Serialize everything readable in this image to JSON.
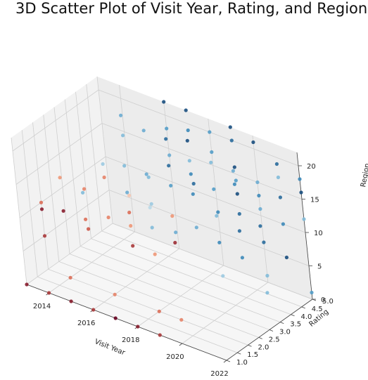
{
  "chart_data": {
    "type": "scatter",
    "title": "3D Scatter Plot of Visit Year, Rating, and Region",
    "xlabel": "Visit Year",
    "ylabel": "Rating",
    "zlabel": "Region",
    "xlim": [
      2013,
      2022
    ],
    "ylim": [
      1.0,
      5.0
    ],
    "zlim": [
      0,
      22
    ],
    "xticks": [
      "2014",
      "2016",
      "2018",
      "2020",
      "2022"
    ],
    "yticks": [
      "1.0",
      "1.5",
      "2.0",
      "2.5",
      "3.0",
      "3.5",
      "4.0",
      "4.5",
      "5.0"
    ],
    "zticks": [
      "0",
      "5",
      "10",
      "15",
      "20"
    ],
    "grid": true,
    "colormap": "RdBu",
    "colormap_stops": [
      "#67001f",
      "#d6604d",
      "#f4a582",
      "#f7f7f7",
      "#92c5de",
      "#4393c3",
      "#053061"
    ],
    "points": [
      {
        "x": 2013,
        "y": 1,
        "z": 0,
        "c": 0.05
      },
      {
        "x": 2014,
        "y": 1,
        "z": 0,
        "c": 0.1
      },
      {
        "x": 2015,
        "y": 1,
        "z": 0,
        "c": 0.05
      },
      {
        "x": 2016,
        "y": 1,
        "z": 0,
        "c": 0.1
      },
      {
        "x": 2017,
        "y": 1,
        "z": 0,
        "c": 0.0
      },
      {
        "x": 2018,
        "y": 1,
        "z": 0,
        "c": 0.05
      },
      {
        "x": 2019,
        "y": 1,
        "z": 0,
        "c": 0.1
      },
      {
        "x": 2014,
        "y": 2,
        "z": 0,
        "c": 0.2
      },
      {
        "x": 2016,
        "y": 2,
        "z": 0,
        "c": 0.25
      },
      {
        "x": 2018,
        "y": 2,
        "z": 0,
        "c": 0.2
      },
      {
        "x": 2019,
        "y": 2,
        "z": 0,
        "c": 0.25
      },
      {
        "x": 2013,
        "y": 2,
        "z": 5,
        "c": 0.1
      },
      {
        "x": 2014,
        "y": 3,
        "z": 5,
        "c": 0.15
      },
      {
        "x": 2016,
        "y": 3,
        "z": 5,
        "c": 0.1
      },
      {
        "x": 2017,
        "y": 3,
        "z": 5,
        "c": 0.3
      },
      {
        "x": 2019,
        "y": 4,
        "z": 2,
        "c": 0.65
      },
      {
        "x": 2021,
        "y": 4,
        "z": 2,
        "c": 0.7
      },
      {
        "x": 2020,
        "y": 5,
        "z": 1,
        "c": 0.7
      },
      {
        "x": 2022,
        "y": 5,
        "z": 1,
        "c": 0.8
      },
      {
        "x": 2013,
        "y": 2,
        "z": 10,
        "c": 0.2
      },
      {
        "x": 2013,
        "y": 2,
        "z": 9,
        "c": 0.05
      },
      {
        "x": 2014,
        "y": 2,
        "z": 10,
        "c": 0.05
      },
      {
        "x": 2015,
        "y": 2,
        "z": 10,
        "c": 0.2
      },
      {
        "x": 2015,
        "y": 3,
        "z": 8,
        "c": 0.25
      },
      {
        "x": 2016,
        "y": 3,
        "z": 8,
        "c": 0.3
      },
      {
        "x": 2016,
        "y": 3,
        "z": 10,
        "c": 0.2
      },
      {
        "x": 2017,
        "y": 3,
        "z": 9,
        "c": 0.7
      },
      {
        "x": 2017,
        "y": 4,
        "z": 6,
        "c": 0.75
      },
      {
        "x": 2018,
        "y": 3,
        "z": 8,
        "c": 0.08
      },
      {
        "x": 2018,
        "y": 4,
        "z": 8,
        "c": 0.75
      },
      {
        "x": 2019,
        "y": 4,
        "z": 7,
        "c": 0.85
      },
      {
        "x": 2020,
        "y": 4,
        "z": 6,
        "c": 0.85
      },
      {
        "x": 2020,
        "y": 5,
        "z": 6,
        "c": 0.9
      },
      {
        "x": 2021,
        "y": 5,
        "z": 5,
        "c": 0.95
      },
      {
        "x": 2014,
        "y": 2,
        "z": 15,
        "c": 0.3
      },
      {
        "x": 2015,
        "y": 3,
        "z": 14,
        "c": 0.25
      },
      {
        "x": 2015,
        "y": 2,
        "z": 14,
        "c": 0.7
      },
      {
        "x": 2016,
        "y": 3,
        "z": 13,
        "c": 0.75
      },
      {
        "x": 2016,
        "y": 4,
        "z": 13,
        "c": 0.7
      },
      {
        "x": 2017,
        "y": 4,
        "z": 13,
        "c": 0.8
      },
      {
        "x": 2017,
        "y": 3,
        "z": 12,
        "c": 0.6
      },
      {
        "x": 2018,
        "y": 4,
        "z": 13,
        "c": 0.85
      },
      {
        "x": 2018,
        "y": 3,
        "z": 12,
        "c": 0.3
      },
      {
        "x": 2019,
        "y": 4,
        "z": 11,
        "c": 0.7
      },
      {
        "x": 2019,
        "y": 5,
        "z": 12,
        "c": 0.95
      },
      {
        "x": 2020,
        "y": 5,
        "z": 11,
        "c": 0.75
      },
      {
        "x": 2020,
        "y": 4,
        "z": 10,
        "c": 0.9
      },
      {
        "x": 2021,
        "y": 5,
        "z": 10,
        "c": 0.85
      },
      {
        "x": 2022,
        "y": 5,
        "z": 12,
        "c": 0.7
      },
      {
        "x": 2015,
        "y": 3,
        "z": 16,
        "c": 0.65
      },
      {
        "x": 2016,
        "y": 3,
        "z": 17,
        "c": 0.7
      },
      {
        "x": 2017,
        "y": 4,
        "z": 16,
        "c": 0.9
      },
      {
        "x": 2017,
        "y": 3,
        "z": 17,
        "c": 0.75
      },
      {
        "x": 2018,
        "y": 4,
        "z": 16,
        "c": 0.85
      },
      {
        "x": 2018,
        "y": 4,
        "z": 18,
        "c": 0.7
      },
      {
        "x": 2019,
        "y": 4,
        "z": 15,
        "c": 0.8
      },
      {
        "x": 2019,
        "y": 5,
        "z": 16,
        "c": 0.95
      },
      {
        "x": 2020,
        "y": 4,
        "z": 17,
        "c": 0.85
      },
      {
        "x": 2020,
        "y": 5,
        "z": 15,
        "c": 0.75
      },
      {
        "x": 2021,
        "y": 5,
        "z": 14,
        "c": 0.9
      },
      {
        "x": 2022,
        "y": 5,
        "z": 16,
        "c": 0.95
      },
      {
        "x": 2016,
        "y": 4,
        "z": 20,
        "c": 0.75
      },
      {
        "x": 2017,
        "y": 4,
        "z": 20,
        "c": 0.9
      },
      {
        "x": 2017,
        "y": 5,
        "z": 19,
        "c": 0.85
      },
      {
        "x": 2018,
        "y": 4,
        "z": 21,
        "c": 0.95
      },
      {
        "x": 2018,
        "y": 5,
        "z": 20,
        "c": 0.8
      },
      {
        "x": 2019,
        "y": 5,
        "z": 20,
        "c": 0.9
      },
      {
        "x": 2019,
        "y": 4,
        "z": 19,
        "c": 0.7
      },
      {
        "x": 2020,
        "y": 5,
        "z": 21,
        "c": 0.95
      },
      {
        "x": 2020,
        "y": 4,
        "z": 19,
        "c": 0.75
      },
      {
        "x": 2021,
        "y": 5,
        "z": 19,
        "c": 0.9
      },
      {
        "x": 2022,
        "y": 5,
        "z": 18,
        "c": 0.85
      },
      {
        "x": 2021,
        "y": 5,
        "z": 17,
        "c": 0.7
      },
      {
        "x": 2016,
        "y": 5,
        "z": 22,
        "c": 0.95
      },
      {
        "x": 2017,
        "y": 5,
        "z": 22,
        "c": 0.95
      },
      {
        "x": 2019,
        "y": 5,
        "z": 22,
        "c": 0.95
      },
      {
        "x": 2015,
        "y": 4,
        "z": 18,
        "c": 0.7
      },
      {
        "x": 2015,
        "y": 4,
        "z": 21,
        "c": 0.75
      },
      {
        "x": 2016,
        "y": 5,
        "z": 18,
        "c": 0.8
      },
      {
        "x": 2018,
        "y": 5,
        "z": 17,
        "c": 0.8
      },
      {
        "x": 2019,
        "y": 5,
        "z": 14,
        "c": 0.8
      },
      {
        "x": 2020,
        "y": 5,
        "z": 13,
        "c": 0.85
      },
      {
        "x": 2021,
        "y": 4,
        "z": 12,
        "c": 0.9
      },
      {
        "x": 2016,
        "y": 4,
        "z": 9,
        "c": 0.65
      },
      {
        "x": 2015,
        "y": 4,
        "z": 9,
        "c": 0.4
      },
      {
        "x": 2014,
        "y": 3,
        "z": 11,
        "c": 0.25
      },
      {
        "x": 2018,
        "y": 5,
        "z": 8,
        "c": 0.85
      },
      {
        "x": 2019,
        "y": 5,
        "z": 9,
        "c": 0.9
      },
      {
        "x": 2017,
        "y": 5,
        "z": 11,
        "c": 0.9
      },
      {
        "x": 2016,
        "y": 5,
        "z": 14,
        "c": 0.75
      }
    ]
  }
}
